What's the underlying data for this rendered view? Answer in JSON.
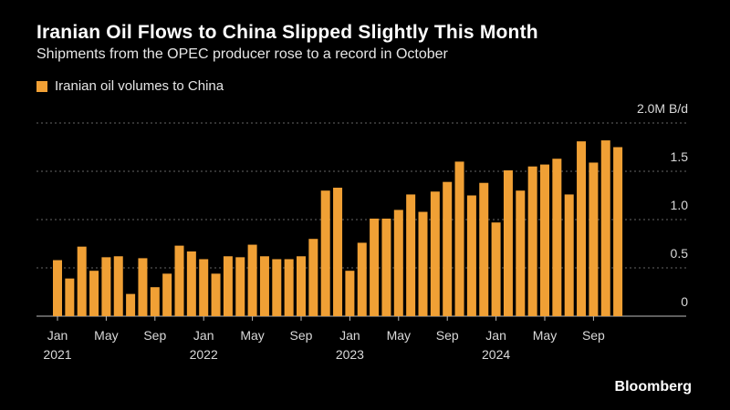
{
  "header": {
    "title": "Iranian Oil Flows to China Slipped Slightly This Month",
    "subtitle": "Shipments from the OPEC producer rose to a record in October"
  },
  "legend": {
    "label": "Iranian oil volumes to China"
  },
  "footer": {
    "brand": "Bloomberg"
  },
  "colors": {
    "bar": "#f0a035",
    "background": "#000000",
    "grid": "#666666"
  },
  "chart_data": {
    "type": "bar",
    "title": "Iranian Oil Flows to China Slipped Slightly This Month",
    "subtitle": "Shipments from the OPEC producer rose to a record in October",
    "unit_label": "M B/d",
    "ylim": [
      0,
      2.0
    ],
    "y_ticks": [
      {
        "value": 0,
        "label": "0"
      },
      {
        "value": 0.5,
        "label": "0.5"
      },
      {
        "value": 1.0,
        "label": "1.0"
      },
      {
        "value": 1.5,
        "label": "1.5"
      },
      {
        "value": 2.0,
        "label": "2.0M B/d"
      }
    ],
    "grid": true,
    "legend_position": "top-left",
    "series": [
      {
        "name": "Iranian oil volumes to China",
        "color": "#f0a035",
        "categories": [
          "2021-01",
          "2021-02",
          "2021-03",
          "2021-04",
          "2021-05",
          "2021-06",
          "2021-07",
          "2021-08",
          "2021-09",
          "2021-10",
          "2021-11",
          "2021-12",
          "2022-01",
          "2022-02",
          "2022-03",
          "2022-04",
          "2022-05",
          "2022-06",
          "2022-07",
          "2022-08",
          "2022-09",
          "2022-10",
          "2022-11",
          "2022-12",
          "2023-01",
          "2023-02",
          "2023-03",
          "2023-04",
          "2023-05",
          "2023-06",
          "2023-07",
          "2023-08",
          "2023-09",
          "2023-10",
          "2023-11",
          "2023-12",
          "2024-01",
          "2024-02",
          "2024-03",
          "2024-04",
          "2024-05",
          "2024-06",
          "2024-07",
          "2024-08",
          "2024-09",
          "2024-10",
          "2024-11"
        ],
        "values": [
          0.58,
          0.39,
          0.72,
          0.47,
          0.61,
          0.62,
          0.23,
          0.6,
          0.3,
          0.44,
          0.73,
          0.67,
          0.59,
          0.44,
          0.62,
          0.61,
          0.74,
          0.62,
          0.59,
          0.59,
          0.62,
          0.8,
          1.3,
          1.33,
          0.47,
          0.76,
          1.01,
          1.01,
          1.1,
          1.26,
          1.08,
          1.29,
          1.39,
          1.6,
          1.25,
          1.38,
          0.97,
          1.51,
          1.3,
          1.55,
          1.57,
          1.63,
          1.26,
          1.81,
          1.59,
          1.82,
          1.75
        ]
      }
    ],
    "x_tick_labels": [
      {
        "index": 0,
        "month": "Jan",
        "year": "2021"
      },
      {
        "index": 4,
        "month": "May",
        "year": ""
      },
      {
        "index": 8,
        "month": "Sep",
        "year": ""
      },
      {
        "index": 12,
        "month": "Jan",
        "year": "2022"
      },
      {
        "index": 16,
        "month": "May",
        "year": ""
      },
      {
        "index": 20,
        "month": "Sep",
        "year": ""
      },
      {
        "index": 24,
        "month": "Jan",
        "year": "2023"
      },
      {
        "index": 28,
        "month": "May",
        "year": ""
      },
      {
        "index": 32,
        "month": "Sep",
        "year": ""
      },
      {
        "index": 36,
        "month": "Jan",
        "year": "2024"
      },
      {
        "index": 40,
        "month": "May",
        "year": ""
      },
      {
        "index": 44,
        "month": "Sep",
        "year": ""
      }
    ]
  }
}
